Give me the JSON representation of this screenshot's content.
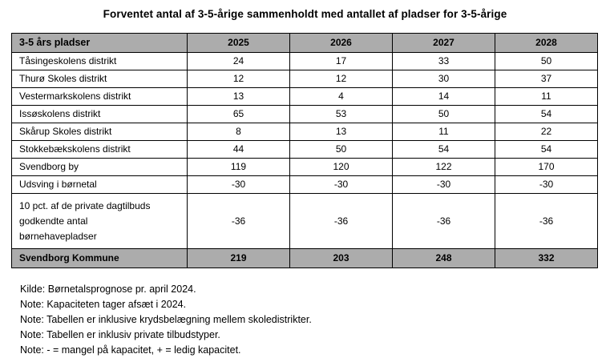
{
  "title": "Forventet antal af 3-5-årige sammenholdt med antallet af pladser for 3-5-årige",
  "colors": {
    "shaded_row_bg": "#acacac",
    "border": "#000000",
    "text": "#000000",
    "page_bg": "#ffffff"
  },
  "table": {
    "columns": [
      "3-5 års pladser",
      "2025",
      "2026",
      "2027",
      "2028"
    ],
    "rows": [
      {
        "label": "Tåsingeskolens distrikt",
        "values": [
          "24",
          "17",
          "33",
          "50"
        ]
      },
      {
        "label": "Thurø Skoles distrikt",
        "values": [
          "12",
          "12",
          "30",
          "37"
        ]
      },
      {
        "label": "Vestermarkskolens distrikt",
        "values": [
          "13",
          "4",
          "14",
          "11"
        ]
      },
      {
        "label": "Issøskolens distrikt",
        "values": [
          "65",
          "53",
          "50",
          "54"
        ]
      },
      {
        "label": "Skårup Skoles distrikt",
        "values": [
          "8",
          "13",
          "11",
          "22"
        ]
      },
      {
        "label": "Stokkebækskolens distrikt",
        "values": [
          "44",
          "50",
          "54",
          "54"
        ]
      },
      {
        "label": "Svendborg by",
        "values": [
          "119",
          "120",
          "122",
          "170"
        ]
      },
      {
        "label": "Udsving i børnetal",
        "values": [
          "-30",
          "-30",
          "-30",
          "-30"
        ]
      },
      {
        "label_lines": [
          "10 pct. af de private dagtilbuds",
          "godkendte antal",
          "børnehavepladser"
        ],
        "values": [
          "-36",
          "-36",
          "-36",
          "-36"
        ]
      }
    ],
    "footer": {
      "label": "Svendborg Kommune",
      "values": [
        "219",
        "203",
        "248",
        "332"
      ]
    }
  },
  "notes": [
    "Kilde: Børnetalsprognose pr. april 2024.",
    "Note: Kapaciteten tager afsæt i 2024.",
    "Note: Tabellen er inklusive krydsbelægning mellem skoledistrikter.",
    "Note: Tabellen er inklusiv private tilbudstyper.",
    "Note: - = mangel på kapacitet, + = ledig kapacitet."
  ]
}
